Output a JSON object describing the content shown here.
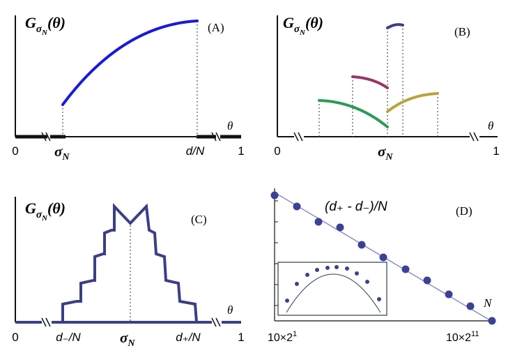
{
  "colors": {
    "axis": "#111111",
    "blue": "#1a1ad8",
    "navy": "#3a3f86",
    "purple": "#99356a",
    "green": "#2e9a58",
    "olive": "#b8a33a",
    "teal_dark": "#2f3e4a",
    "dotted": "#555555",
    "data_point": "#3b4194",
    "fit_line": "#8a8fc8"
  },
  "panels": {
    "A": {
      "ylabel_G": "G",
      "ylabel_sub": "σ",
      "ylabel_subsub": "N",
      "ylabel_arg": "(θ)",
      "letter": "(A)",
      "x_zero": "0",
      "x_sigma": "σ",
      "x_sigma_sub": "N",
      "x_dN": "d/N",
      "x_one": "1",
      "axis_label": "θ"
    },
    "B": {
      "ylabel_G": "G",
      "ylabel_sub": "σ",
      "ylabel_subsub": "N",
      "ylabel_arg": "(θ)",
      "letter": "(B)",
      "x_zero": "0",
      "x_sigma": "σ",
      "x_sigma_sub": "N",
      "x_one": "1",
      "axis_label": "θ"
    },
    "C": {
      "ylabel_G": "G",
      "ylabel_sub": "σ",
      "ylabel_subsub": "N",
      "ylabel_arg": "(θ)",
      "letter": "(C)",
      "x_zero": "0",
      "x_dminus": "d₋/N",
      "x_sigma": "σ",
      "x_sigma_sub": "N",
      "x_dplus": "d₊/N",
      "x_one": "1",
      "axis_label": "θ"
    },
    "D": {
      "letter": "(D)",
      "formula": "(d₊ - d₋)/N",
      "x_left_base": "10×2",
      "x_left_exp": "1",
      "x_right_base": "10×2",
      "x_right_exp": "11",
      "axis_label": "N"
    }
  }
}
